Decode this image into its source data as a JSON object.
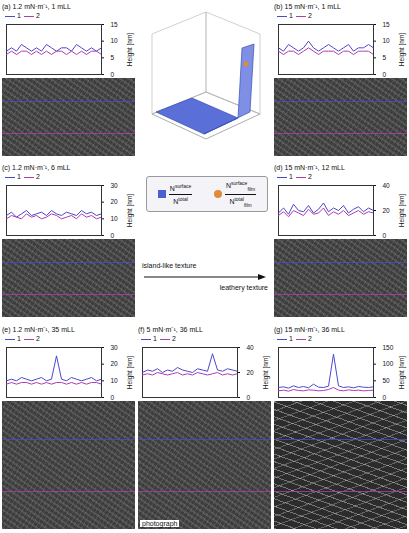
{
  "chart_data": [
    {
      "type": "line",
      "title": "(a) 1.2 mN·m⁻¹, 1 mLL",
      "y_label": "Height [nm]",
      "legend": "top-left",
      "tick_labels": "y",
      "grid": false,
      "x": [
        0,
        1,
        2,
        3,
        4,
        5,
        6,
        7,
        8,
        9,
        10,
        11,
        12,
        13,
        14,
        15,
        16,
        17,
        18,
        19
      ],
      "xlim": [
        0,
        19
      ],
      "ylim": [
        0,
        15
      ],
      "yticks": [
        0,
        5,
        10,
        15
      ],
      "series": [
        {
          "name": "1",
          "color": "#4a4ad0",
          "values": [
            7,
            8,
            7,
            9,
            8,
            7,
            8,
            7,
            9,
            8,
            7,
            8,
            8,
            7,
            9,
            8,
            7,
            8,
            7,
            8
          ]
        },
        {
          "name": "2",
          "color": "#b03cb0",
          "values": [
            6,
            7,
            6,
            7,
            7,
            6,
            7,
            6,
            7,
            6,
            7,
            7,
            6,
            7,
            6,
            7,
            6,
            7,
            7,
            6
          ]
        }
      ]
    },
    {
      "type": "line",
      "title": "(b) 15 mN·m⁻¹, 1 mLL",
      "y_label": "Height [nm]",
      "legend": "top-left",
      "tick_labels": "y",
      "grid": false,
      "x": [
        0,
        1,
        2,
        3,
        4,
        5,
        6,
        7,
        8,
        9,
        10,
        11,
        12,
        13,
        14,
        15,
        16,
        17,
        18,
        19
      ],
      "xlim": [
        0,
        19
      ],
      "ylim": [
        0,
        15
      ],
      "yticks": [
        0,
        5,
        10,
        15
      ],
      "series": [
        {
          "name": "1",
          "color": "#4a4ad0",
          "values": [
            8,
            7,
            9,
            8,
            7,
            8,
            10,
            8,
            7,
            8,
            9,
            8,
            7,
            8,
            9,
            7,
            8,
            8,
            9,
            8
          ]
        },
        {
          "name": "2",
          "color": "#b03cb0",
          "values": [
            7,
            6,
            7,
            7,
            6,
            7,
            8,
            7,
            6,
            7,
            7,
            7,
            6,
            7,
            7,
            6,
            7,
            7,
            7,
            6
          ]
        }
      ]
    },
    {
      "type": "line",
      "title": "(c) 1.2 mN·m⁻¹, 6 mLL",
      "y_label": "Height [nm]",
      "legend": "top-left",
      "tick_labels": "y",
      "grid": false,
      "x": [
        0,
        1,
        2,
        3,
        4,
        5,
        6,
        7,
        8,
        9,
        10,
        11,
        12,
        13,
        14,
        15,
        16,
        17,
        18,
        19
      ],
      "xlim": [
        0,
        19
      ],
      "ylim": [
        0,
        30
      ],
      "yticks": [
        0,
        10,
        20,
        30
      ],
      "series": [
        {
          "name": "1",
          "color": "#4a4ad0",
          "values": [
            12,
            14,
            11,
            13,
            15,
            12,
            13,
            14,
            12,
            15,
            13,
            12,
            14,
            13,
            12,
            15,
            13,
            14,
            12,
            13
          ]
        },
        {
          "name": "2",
          "color": "#b03cb0",
          "values": [
            10,
            12,
            11,
            10,
            13,
            11,
            12,
            10,
            11,
            13,
            12,
            10,
            11,
            12,
            10,
            13,
            11,
            12,
            10,
            11
          ]
        }
      ]
    },
    {
      "type": "line",
      "title": "(d) 15 mN·m⁻¹, 12 mLL",
      "y_label": "Height [nm]",
      "legend": "top-left",
      "tick_labels": "y",
      "grid": false,
      "x": [
        0,
        1,
        2,
        3,
        4,
        5,
        6,
        7,
        8,
        9,
        10,
        11,
        12,
        13,
        14,
        15,
        16,
        17,
        18,
        19
      ],
      "xlim": [
        0,
        19
      ],
      "ylim": [
        0,
        40
      ],
      "yticks": [
        0,
        20,
        40
      ],
      "series": [
        {
          "name": "1",
          "color": "#4a4ad0",
          "values": [
            18,
            22,
            17,
            25,
            20,
            19,
            24,
            18,
            21,
            26,
            19,
            22,
            20,
            24,
            18,
            21,
            23,
            19,
            22,
            20
          ]
        },
        {
          "name": "2",
          "color": "#b03cb0",
          "values": [
            16,
            19,
            15,
            20,
            18,
            16,
            21,
            17,
            18,
            22,
            16,
            19,
            17,
            20,
            16,
            18,
            20,
            17,
            19,
            18
          ]
        }
      ]
    },
    {
      "type": "line",
      "title": "(e) 1.2 mN·m⁻¹, 35 mLL",
      "y_label": "Height [nm]",
      "legend": "top-left",
      "tick_labels": "y",
      "grid": false,
      "x": [
        0,
        1,
        2,
        3,
        4,
        5,
        6,
        7,
        8,
        9,
        10,
        11,
        12,
        13,
        14,
        15,
        16,
        17,
        18,
        19
      ],
      "xlim": [
        0,
        19
      ],
      "ylim": [
        0,
        30
      ],
      "yticks": [
        0,
        10,
        20,
        30
      ],
      "series": [
        {
          "name": "1",
          "color": "#4a4ad0",
          "values": [
            10,
            11,
            10,
            12,
            11,
            10,
            11,
            12,
            10,
            11,
            25,
            11,
            10,
            12,
            11,
            10,
            11,
            12,
            10,
            11
          ]
        },
        {
          "name": "2",
          "color": "#b03cb0",
          "values": [
            8,
            9,
            8,
            9,
            9,
            8,
            9,
            8,
            9,
            8,
            9,
            9,
            8,
            9,
            8,
            9,
            8,
            9,
            9,
            8
          ]
        }
      ]
    },
    {
      "type": "line",
      "title": "(f) 5 mN·m⁻¹, 36 mLL",
      "y_label": "Height [nm]",
      "legend": "top-left",
      "tick_labels": "y",
      "grid": false,
      "x": [
        0,
        1,
        2,
        3,
        4,
        5,
        6,
        7,
        8,
        9,
        10,
        11,
        12,
        13,
        14,
        15,
        16,
        17,
        18,
        19
      ],
      "xlim": [
        0,
        19
      ],
      "ylim": [
        0,
        40
      ],
      "yticks": [
        0,
        20,
        40
      ],
      "series": [
        {
          "name": "1",
          "color": "#4a4ad0",
          "values": [
            20,
            22,
            21,
            23,
            20,
            22,
            21,
            24,
            22,
            21,
            20,
            23,
            22,
            21,
            35,
            22,
            21,
            23,
            22,
            21
          ]
        },
        {
          "name": "2",
          "color": "#b03cb0",
          "values": [
            18,
            19,
            18,
            20,
            19,
            18,
            19,
            20,
            18,
            19,
            18,
            20,
            19,
            18,
            19,
            20,
            18,
            19,
            18,
            19
          ]
        }
      ]
    },
    {
      "type": "line",
      "title": "(g) 15 mN·m⁻¹, 36 mLL",
      "y_label": "Height [nm]",
      "legend": "top-left",
      "tick_labels": "y",
      "grid": false,
      "x": [
        0,
        1,
        2,
        3,
        4,
        5,
        6,
        7,
        8,
        9,
        10,
        11,
        12,
        13,
        14,
        15,
        16,
        17,
        18,
        19
      ],
      "xlim": [
        0,
        19
      ],
      "ylim": [
        0,
        150
      ],
      "yticks": [
        0,
        50,
        100,
        150
      ],
      "series": [
        {
          "name": "1",
          "color": "#4a4ad0",
          "values": [
            30,
            32,
            28,
            35,
            30,
            33,
            29,
            40,
            31,
            30,
            34,
            130,
            35,
            30,
            32,
            29,
            33,
            31,
            30,
            32
          ]
        },
        {
          "name": "2",
          "color": "#b03cb0",
          "values": [
            20,
            22,
            19,
            24,
            21,
            20,
            23,
            22,
            20,
            21,
            24,
            30,
            22,
            20,
            23,
            21,
            22,
            20,
            21,
            22
          ]
        }
      ]
    }
  ],
  "figure": {
    "texture_arrow": {
      "from": "island-like texture",
      "to": "leathery texture"
    },
    "photograph_label": "photograph",
    "formulas": [
      {
        "color": "#4a5fd0",
        "marker": "square",
        "symbol": "N",
        "numerator_sup": "surface",
        "denominator_sup": "total"
      },
      {
        "color": "#e08a3a",
        "marker": "circle",
        "symbol": "N",
        "numerator_sup": "surface",
        "denominator_sup": "total",
        "sub": "film"
      }
    ]
  }
}
